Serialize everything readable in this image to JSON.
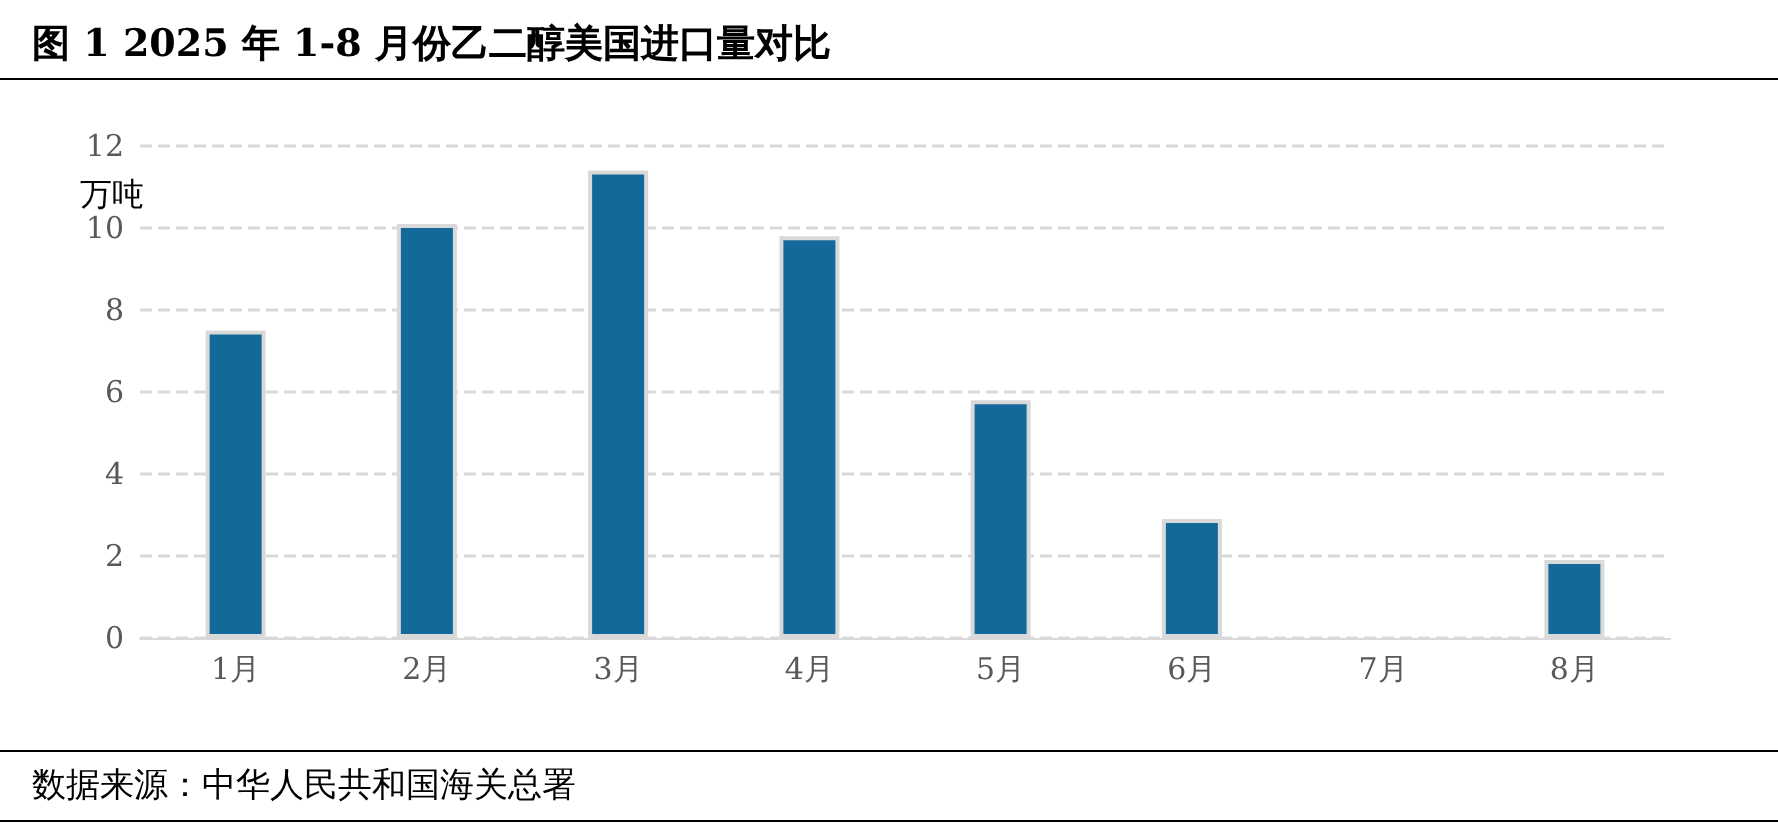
{
  "chart_data": {
    "type": "bar",
    "title": "图 1 2025 年 1-8 月份乙二醇美国进口量对比",
    "ylabel": "万吨",
    "categories": [
      "1月",
      "2月",
      "3月",
      "4月",
      "5月",
      "6月",
      "7月",
      "8月"
    ],
    "values": [
      7.5,
      10.1,
      11.4,
      9.8,
      5.8,
      2.9,
      null,
      1.9
    ],
    "color": "#136a9a",
    "ylim": [
      0,
      12
    ],
    "yticks": [
      0,
      2,
      4,
      6,
      8,
      10,
      12
    ],
    "grid": "y",
    "annotations": [
      "数据来源：中华人民共和国海关总署"
    ]
  }
}
